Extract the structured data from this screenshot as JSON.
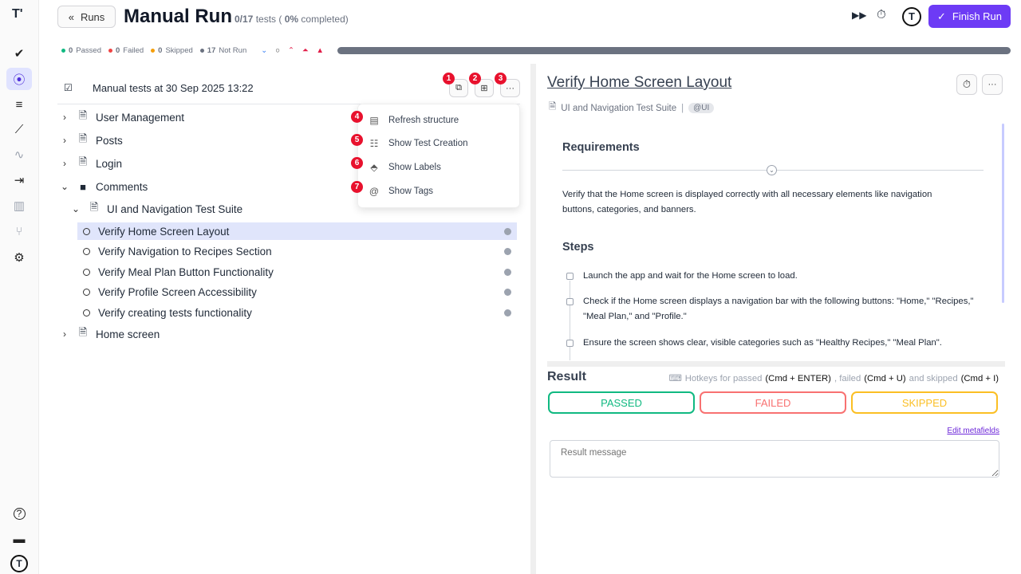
{
  "sidebar": {
    "logo": "T'",
    "items": [
      {
        "name": "check-icon",
        "glyph": "✔"
      },
      {
        "name": "play-circle-icon",
        "glyph": "⦿",
        "active": true
      },
      {
        "name": "list-check-icon",
        "glyph": "≡"
      },
      {
        "name": "steps-icon",
        "glyph": "⟋"
      },
      {
        "name": "pulse-icon",
        "glyph": "∿"
      },
      {
        "name": "import-icon",
        "glyph": "⇥"
      },
      {
        "name": "chart-icon",
        "glyph": "▥"
      },
      {
        "name": "branch-icon",
        "glyph": "⑂"
      },
      {
        "name": "gear-icon",
        "glyph": "⚙"
      }
    ],
    "bottom": [
      {
        "name": "help-icon",
        "glyph": "?"
      },
      {
        "name": "folder-icon",
        "glyph": "▬"
      }
    ]
  },
  "header": {
    "back_label": "Runs",
    "title": "Manual Run",
    "count": "0/17",
    "tests_word": "tests (",
    "percent": "0%",
    "completed_word": "completed)",
    "finish_label": "Finish Run",
    "accent": "#6d3bf5"
  },
  "stats": {
    "passed": "0",
    "passed_label": "Passed",
    "failed": "0",
    "failed_label": "Failed",
    "skipped": "0",
    "skipped_label": "Skipped",
    "notrun": "17",
    "notrun_label": "Not Run",
    "progress_percent": 0
  },
  "tree": {
    "title": "Manual tests at 30 Sep 2025 13:22",
    "badges": [
      "1",
      "2",
      "3"
    ],
    "folders": [
      {
        "label": "User Management"
      },
      {
        "label": "Posts"
      },
      {
        "label": "Login"
      },
      {
        "label": "Comments"
      },
      {
        "label": "UI and Navigation Test Suite"
      },
      {
        "label": "Home screen"
      }
    ],
    "tests": [
      {
        "label": "Verify Home Screen Layout",
        "selected": true
      },
      {
        "label": "Verify Navigation to Recipes Section"
      },
      {
        "label": "Verify Meal Plan Button Functionality"
      },
      {
        "label": "Verify Profile Screen Accessibility"
      },
      {
        "label": "Verify creating tests functionality"
      }
    ]
  },
  "menu": {
    "items": [
      {
        "badge": "4",
        "label": "Refresh structure"
      },
      {
        "badge": "5",
        "label": "Show Test Creation"
      },
      {
        "badge": "6",
        "label": "Show Labels"
      },
      {
        "badge": "7",
        "label": "Show Tags"
      }
    ]
  },
  "detail": {
    "title": "Verify Home Screen Layout",
    "suite": "UI and Navigation Test Suite",
    "tag": "@UI",
    "requirements_heading": "Requirements",
    "requirements_text": "Verify that the Home screen is displayed correctly with all necessary elements like navigation buttons, categories, and banners.",
    "steps_heading": "Steps",
    "steps": [
      "Launch the app and wait for the Home screen to load.",
      "Check if the Home screen displays a navigation bar with the following buttons: \"Home,\" \"Recipes,\" \"Meal Plan,\" and \"Profile.\"",
      "Ensure the screen shows clear, visible categories such as \"Healthy Recipes,\" \"Meal Plan\"."
    ]
  },
  "result": {
    "heading": "Result",
    "hk1": "Hotkeys for passed",
    "k1": "(Cmd + ENTER)",
    "hk2": ", failed",
    "k2": "(Cmd + U)",
    "hk3": "and skipped",
    "k3": "(Cmd + I)",
    "passed": "PASSED",
    "failed": "FAILED",
    "skipped": "SKIPPED",
    "edit_metafields": "Edit metafields",
    "message_placeholder": "Result message",
    "colors": {
      "passed": "#10b981",
      "failed": "#f87171",
      "skipped": "#fbbf24"
    }
  }
}
